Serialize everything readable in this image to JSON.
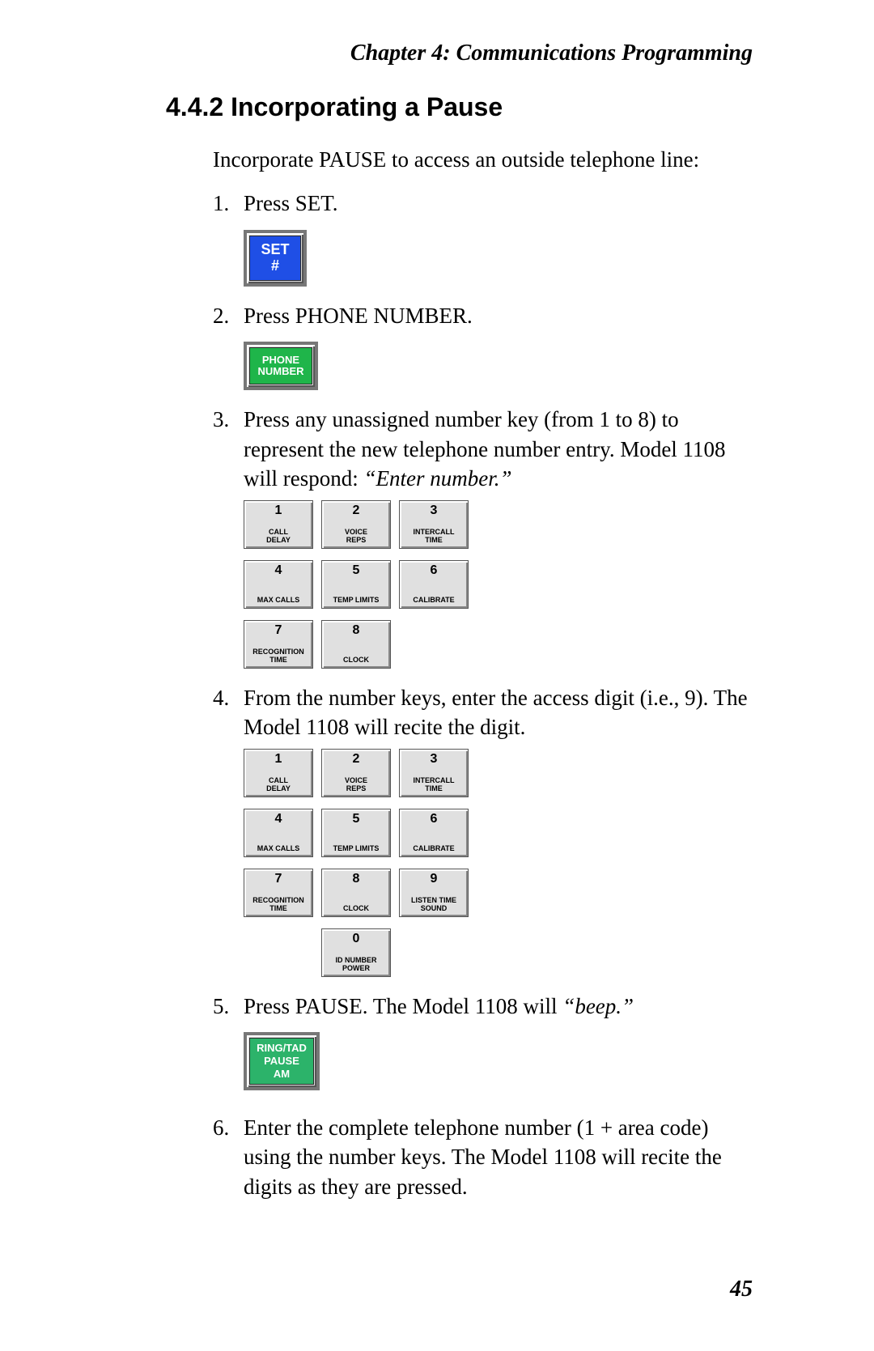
{
  "chapter_header": "Chapter 4:  Communications Programming",
  "section_title": "4.4.2  Incorporating a Pause",
  "intro_text": "Incorporate PAUSE to access an outside telephone line:",
  "page_number": "45",
  "steps": {
    "s1": {
      "num": "1.",
      "text": "Press SET."
    },
    "s2": {
      "num": "2.",
      "text": "Press PHONE NUMBER."
    },
    "s3": {
      "num": "3.",
      "text": "Press any unassigned number key (from 1 to  8) to represent the new telephone number entry. Model 1108 will respond: ",
      "italic": "“Enter number.”"
    },
    "s4": {
      "num": "4.",
      "text": "From the number keys, enter the access digit (i.e., 9). The Model 1108 will recite the digit."
    },
    "s5": {
      "num": "5.",
      "text_a": "Press PAUSE. The Model 1108 will ",
      "italic": "“beep.”"
    },
    "s6": {
      "num": "6.",
      "text": "Enter the complete telephone number (1 + area code) using the number keys. The Model 1108 will recite the digits as they are pressed."
    }
  },
  "buttons": {
    "set": {
      "line1": "SET",
      "line2": "#",
      "bg": "#1f4fe6",
      "fg": "#ffffff"
    },
    "phone": {
      "line1": "PHONE",
      "line2": "NUMBER",
      "bg": "#1fb54a",
      "fg": "#ffffff"
    },
    "pause": {
      "line1": "RING/TAD",
      "line2": "PAUSE",
      "line3": "AM",
      "bg": "#2cb36a",
      "fg": "#ffffff"
    }
  },
  "keypad8": [
    {
      "num": "1",
      "label": "CALL\nDELAY"
    },
    {
      "num": "2",
      "label": "VOICE\nREPS"
    },
    {
      "num": "3",
      "label": "INTERCALL\nTIME"
    },
    {
      "num": "4",
      "label": "MAX CALLS"
    },
    {
      "num": "5",
      "label": "TEMP LIMITS"
    },
    {
      "num": "6",
      "label": "CALIBRATE"
    },
    {
      "num": "7",
      "label": "RECOGNITION\nTIME"
    },
    {
      "num": "8",
      "label": "CLOCK"
    }
  ],
  "keypad10": [
    {
      "num": "1",
      "label": "CALL\nDELAY"
    },
    {
      "num": "2",
      "label": "VOICE\nREPS"
    },
    {
      "num": "3",
      "label": "INTERCALL\nTIME"
    },
    {
      "num": "4",
      "label": "MAX CALLS"
    },
    {
      "num": "5",
      "label": "TEMP LIMITS"
    },
    {
      "num": "6",
      "label": "CALIBRATE"
    },
    {
      "num": "7",
      "label": "RECOGNITION\nTIME"
    },
    {
      "num": "8",
      "label": "CLOCK"
    },
    {
      "num": "9",
      "label": "LISTEN TIME\nSOUND"
    },
    {
      "num": "0",
      "label": "ID NUMBER\nPOWER"
    }
  ],
  "style": {
    "keypad_bg": "#e0e0e0",
    "keypad_border": "#555555",
    "page_bg": "#ffffff",
    "text_color": "#000000"
  }
}
